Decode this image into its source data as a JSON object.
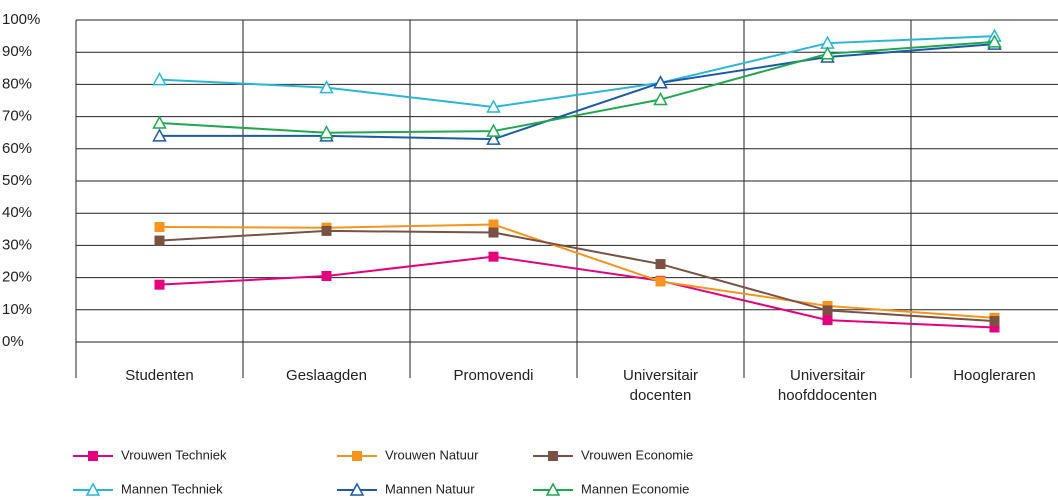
{
  "chart_data": {
    "type": "line",
    "categories": [
      "Studenten",
      "Geslaagden",
      "Promovendi",
      "Universitair docenten",
      "Universitair hoofddocenten",
      "Hoogleraren"
    ],
    "ylim": [
      0,
      100
    ],
    "yticks": [
      {
        "value": 0,
        "label": "0%"
      },
      {
        "value": 10,
        "label": "10%"
      },
      {
        "value": 20,
        "label": "20%"
      },
      {
        "value": 30,
        "label": "30%"
      },
      {
        "value": 40,
        "label": "40%"
      },
      {
        "value": 50,
        "label": "50%"
      },
      {
        "value": 60,
        "label": "60%"
      },
      {
        "value": 70,
        "label": "70%"
      },
      {
        "value": 80,
        "label": "80%"
      },
      {
        "value": 90,
        "label": "90%"
      },
      {
        "value": 100,
        "label": "100%"
      }
    ],
    "grid": true,
    "series": [
      {
        "name": "Vrouwen Techniek",
        "color": "#e5007e",
        "marker": "square",
        "values": [
          17.8,
          20.5,
          26.5,
          19,
          6.8,
          4.5
        ]
      },
      {
        "name": "Vrouwen Natuur",
        "color": "#f7941d",
        "marker": "square",
        "values": [
          35.7,
          35.5,
          36.5,
          18.8,
          11.2,
          7.5
        ]
      },
      {
        "name": "Vrouwen Economie",
        "color": "#7b5143",
        "marker": "square",
        "values": [
          31.5,
          34.5,
          34,
          24.2,
          9.8,
          6.5
        ]
      },
      {
        "name": "Mannen Techniek",
        "color": "#29b6d8",
        "marker": "triangle",
        "values": [
          81.5,
          79,
          73,
          80.5,
          92.8,
          95
        ]
      },
      {
        "name": "Mannen Natuur",
        "color": "#1c5aa6",
        "marker": "triangle",
        "values": [
          64,
          64,
          63,
          80.5,
          88.5,
          92.5
        ]
      },
      {
        "name": "Mannen Economie",
        "color": "#1fa84f",
        "marker": "triangle",
        "values": [
          68,
          65,
          65.5,
          75.3,
          89.5,
          93.2
        ]
      }
    ]
  }
}
